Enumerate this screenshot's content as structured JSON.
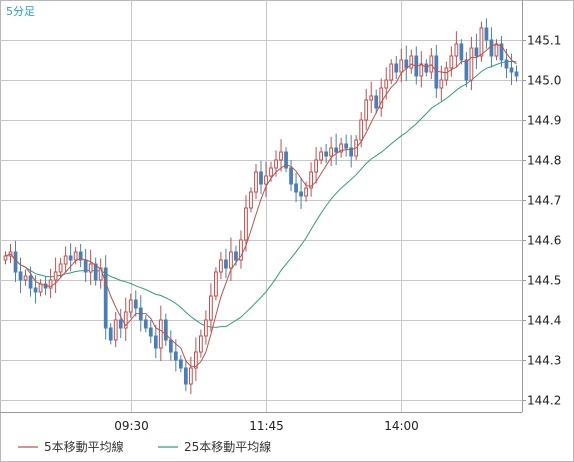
{
  "chart_data": {
    "type": "candlestick",
    "timeframe_label": "5分足",
    "y_ticks": [
      "145.1",
      "145.0",
      "144.9",
      "144.8",
      "144.7",
      "144.6",
      "144.5",
      "144.4",
      "144.3",
      "144.2"
    ],
    "y_range": [
      144.17,
      145.2
    ],
    "x_ticks": [
      {
        "label": "09:30",
        "index": 25
      },
      {
        "label": "11:45",
        "index": 52
      },
      {
        "label": "14:00",
        "index": 79
      }
    ],
    "candle_count": 103,
    "grid": true,
    "legend": [
      {
        "name": "5本移動平均線",
        "color": "#c0504d"
      },
      {
        "name": "25本移動平均線",
        "color": "#2e9e7a"
      }
    ],
    "colors": {
      "up": "#c0504d",
      "down": "#4a7fb5",
      "ma5": "#c0504d",
      "ma25": "#2e9e7a",
      "grid": "#c8c8c8"
    },
    "closes": [
      144.56,
      144.57,
      144.52,
      144.5,
      144.51,
      144.48,
      144.47,
      144.49,
      144.48,
      144.5,
      144.52,
      144.54,
      144.56,
      144.55,
      144.57,
      144.55,
      144.52,
      144.54,
      144.5,
      144.53,
      144.38,
      144.35,
      144.4,
      144.38,
      144.42,
      144.45,
      144.43,
      144.4,
      144.38,
      144.36,
      144.33,
      144.4,
      144.35,
      144.32,
      144.3,
      144.28,
      144.24,
      144.28,
      144.32,
      144.36,
      144.4,
      144.46,
      144.52,
      144.55,
      144.53,
      144.57,
      144.55,
      144.6,
      144.68,
      144.72,
      144.77,
      144.74,
      144.76,
      144.78,
      144.8,
      144.82,
      144.78,
      144.74,
      144.72,
      144.71,
      144.73,
      144.77,
      144.8,
      144.82,
      144.81,
      144.83,
      144.82,
      144.84,
      144.83,
      144.81,
      144.85,
      144.9,
      144.95,
      144.96,
      144.93,
      144.98,
      145.0,
      145.04,
      145.02,
      145.05,
      145.03,
      145.06,
      145.01,
      145.04,
      145.02,
      145.06,
      144.98,
      145.0,
      145.03,
      145.06,
      145.09,
      145.05,
      145.0,
      145.08,
      145.06,
      145.13,
      145.1,
      145.06,
      145.09,
      145.05,
      145.03,
      145.02,
      145.01
    ]
  }
}
